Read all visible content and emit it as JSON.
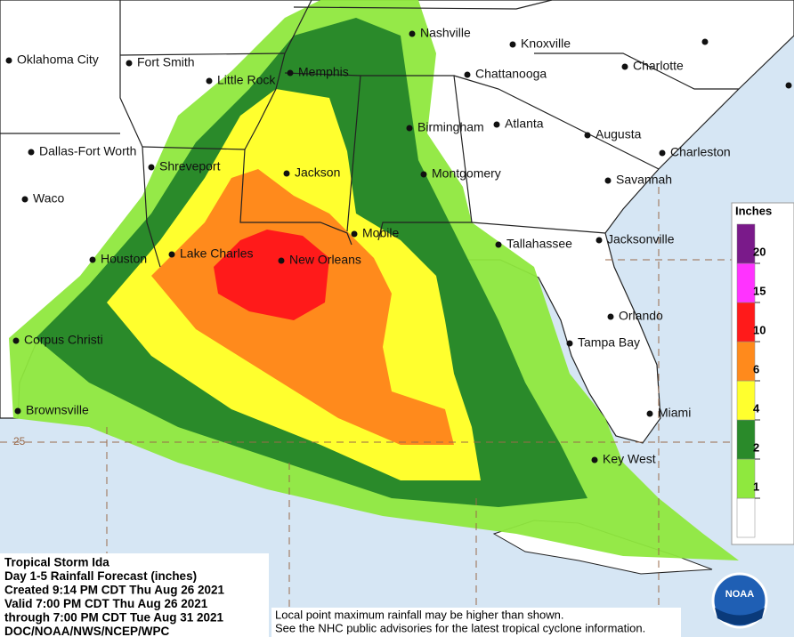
{
  "map": {
    "cities": [
      "Oklahoma City",
      "Fort Smith",
      "Little Rock",
      "Memphis",
      "Nashville",
      "Knoxville",
      "Chattanooga",
      "Charlotte",
      "Dallas-Fort Worth",
      "Shreveport",
      "Jackson",
      "Birmingham",
      "Atlanta",
      "Augusta",
      "Charleston",
      "Savannah",
      "Waco",
      "Montgomery",
      "Mobile",
      "Tallahassee",
      "Jacksonville",
      "Houston",
      "Lake Charles",
      "New Orleans",
      "Orlando",
      "Tampa Bay",
      "Corpus Christi",
      "Miami",
      "Brownsville",
      "Key West"
    ],
    "latitude_label": "25"
  },
  "legend": {
    "title": "Inches",
    "ticks": [
      1,
      2,
      4,
      6,
      10,
      15,
      20
    ],
    "colors": [
      "#ffffff",
      "#8fe83e",
      "#2a8a2a",
      "#ffff2e",
      "#ff8a1c",
      "#ff1a1a",
      "#ff33ff",
      "#7a1a8a"
    ]
  },
  "info": {
    "lines": [
      "Tropical Storm Ida",
      "Day 1-5 Rainfall Forecast (inches)",
      "Created 9:14 PM CDT Thu Aug 26 2021",
      "Valid 7:00 PM CDT Thu Aug 26 2021",
      "through 7:00 PM CDT Tue Aug 31 2021",
      "DOC/NOAA/NWS/NCEP/WPC"
    ]
  },
  "disclaimer": {
    "lines": [
      "Local point maximum rainfall may be higher than shown.",
      "See the NHC public advisories for the latest tropical cyclone information."
    ]
  },
  "logo": {
    "text": "NOAA"
  }
}
